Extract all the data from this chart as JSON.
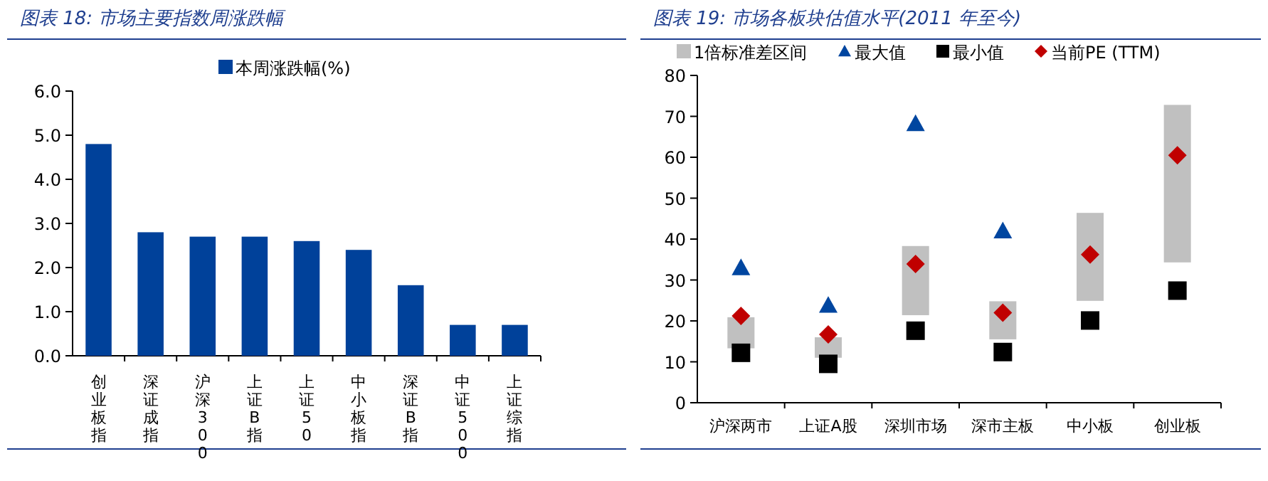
{
  "chart_data": [
    {
      "type": "bar",
      "title": "图表 18:  市场主要指数周涨跌幅",
      "categories": [
        "创业板指",
        "深证成指",
        "沪深300",
        "上证B指",
        "上证50",
        "中小板指",
        "深证B指",
        "中证500",
        "上证综指"
      ],
      "series": [
        {
          "name": "本周涨跌幅(%)",
          "color": "#00419a",
          "values": [
            4.8,
            2.8,
            2.7,
            2.7,
            2.6,
            2.4,
            1.6,
            0.7,
            0.7
          ]
        }
      ],
      "ylim": [
        0,
        6
      ],
      "yticks": [
        {
          "value": 0,
          "label": "0.0"
        },
        {
          "value": 1,
          "label": "1.0"
        },
        {
          "value": 2,
          "label": "2.0"
        },
        {
          "value": 3,
          "label": "3.0"
        },
        {
          "value": 4,
          "label": "4.0"
        },
        {
          "value": 5,
          "label": "5.0"
        },
        {
          "value": 6,
          "label": "6.0"
        }
      ],
      "legend": "top",
      "grid": false
    },
    {
      "type": "bar",
      "title": "图表 19:  市场各板块估值水平(2011 年至今)",
      "categories": [
        "沪深两市",
        "上证A股",
        "深圳市场",
        "深市主板",
        "中小板",
        "创业板"
      ],
      "series": [
        {
          "name": "1倍标准差区间",
          "type": "bar",
          "color": "#c0c0c0",
          "base": [
            13.3,
            11.0,
            21.4,
            15.5,
            24.9,
            34.3
          ],
          "values": [
            7.6,
            5.0,
            16.9,
            9.3,
            21.5,
            38.5
          ]
        },
        {
          "name": "最大值",
          "type": "scatter",
          "marker": "triangle",
          "color": "#0046a0",
          "values": [
            33.0,
            23.8,
            68.2,
            42.0,
            null,
            null
          ]
        },
        {
          "name": "最小值",
          "type": "scatter",
          "marker": "square",
          "color": "#000000",
          "values": [
            12.2,
            9.5,
            17.6,
            12.4,
            20.1,
            27.4
          ]
        },
        {
          "name": "当前PE (TTM)",
          "type": "scatter",
          "marker": "diamond",
          "color": "#c00000",
          "values": [
            21.2,
            16.7,
            33.9,
            22.0,
            36.2,
            60.5
          ]
        }
      ],
      "ylim": [
        0,
        80
      ],
      "yticks": [
        0,
        10,
        20,
        30,
        40,
        50,
        60,
        70,
        80
      ],
      "legend": "top",
      "grid": false
    }
  ]
}
